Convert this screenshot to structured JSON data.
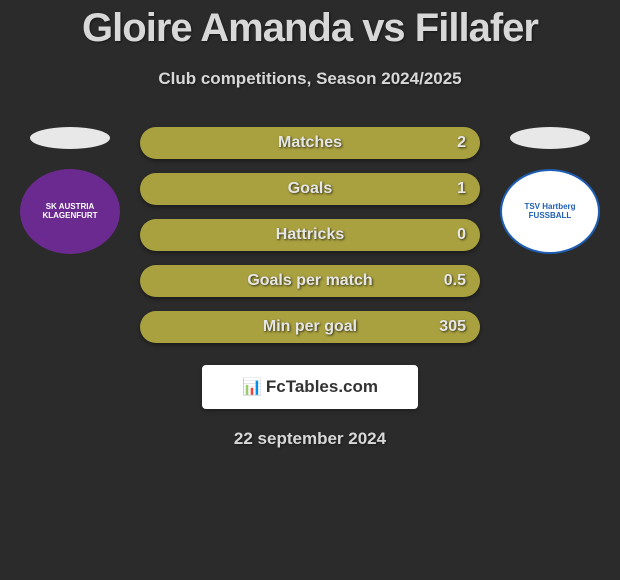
{
  "title": "Gloire Amanda vs Fillafer",
  "subtitle": "Club competitions, Season 2024/2025",
  "date": "22 september 2024",
  "brand": {
    "icon": "📊",
    "text": "FcTables.com"
  },
  "colors": {
    "background": "#2b2b2b",
    "bar": "#a9a13f",
    "text_light": "#d8d8d8",
    "bar_text": "#e6e6e6",
    "brand_bg": "#ffffff",
    "brand_text": "#333333",
    "ellipse": "#e8e8e8"
  },
  "left_player": {
    "club_name": "SK AUSTRIA KLAGENFURT",
    "club_badge_bg": "#6b2a8f",
    "club_badge_text": "#ffffff"
  },
  "right_player": {
    "club_name": "TSV Hartberg FUSSBALL",
    "club_badge_bg": "#ffffff",
    "club_badge_text": "#1e5fb4"
  },
  "stats": [
    {
      "label": "Matches",
      "value": "2"
    },
    {
      "label": "Goals",
      "value": "1"
    },
    {
      "label": "Hattricks",
      "value": "0"
    },
    {
      "label": "Goals per match",
      "value": "0.5"
    },
    {
      "label": "Min per goal",
      "value": "305"
    }
  ]
}
